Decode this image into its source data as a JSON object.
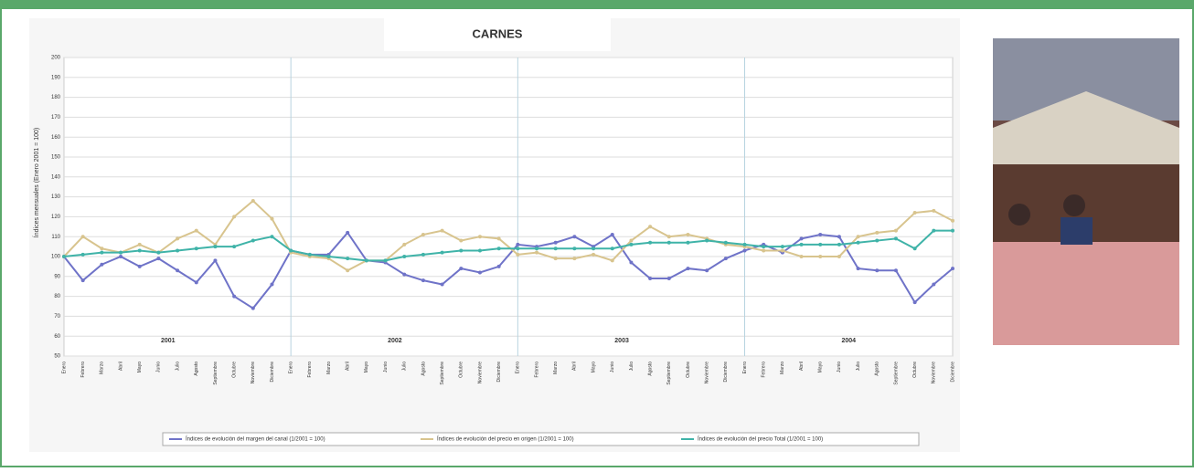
{
  "chart_data": {
    "type": "line",
    "title": "CARNES",
    "y_label": "Índices mensuales (Enero 2001 = 100)",
    "categories": [
      "Enero",
      "Febrero",
      "Marzo",
      "Abril",
      "Mayo",
      "Junio",
      "Julio",
      "Agosto",
      "Septiembre",
      "Octubre",
      "Noviembre",
      "Diciembre",
      "Enero",
      "Febrero",
      "Marzo",
      "Abril",
      "Mayo",
      "Junio",
      "Julio",
      "Agosto",
      "Septiembre",
      "Octubre",
      "Noviembre",
      "Diciembre",
      "Enero",
      "Febrero",
      "Marzo",
      "Abril",
      "Mayo",
      "Junio",
      "Julio",
      "Agosto",
      "Septiembre",
      "Octubre",
      "Noviembre",
      "Diciembre",
      "Enero",
      "Febrero",
      "Marzo",
      "Abril",
      "Mayo",
      "Junio",
      "Julio",
      "Agosto",
      "Septiembre",
      "Octubre",
      "Noviembre",
      "Diciembre"
    ],
    "year_labels": [
      "2001",
      "2002",
      "2003",
      "2004"
    ],
    "series": [
      {
        "name": "Índices de evolución del margen del canal (1/2001 = 100)",
        "color": "#6f73c8",
        "values": [
          100,
          88,
          96,
          100,
          95,
          99,
          93,
          87,
          98,
          80,
          74,
          86,
          103,
          101,
          101,
          112,
          98,
          97,
          91,
          88,
          86,
          94,
          92,
          95,
          106,
          105,
          107,
          110,
          105,
          111,
          97,
          89,
          89,
          94,
          93,
          99,
          103,
          106,
          102,
          109,
          111,
          110,
          94,
          93,
          93,
          77,
          86,
          94
        ]
      },
      {
        "name": "Índices de evolución del precio en origen (1/2001 = 100)",
        "color": "#d8c48e",
        "values": [
          100,
          110,
          104,
          102,
          106,
          102,
          109,
          113,
          106,
          120,
          128,
          119,
          102,
          100,
          99,
          93,
          98,
          98,
          106,
          111,
          113,
          108,
          110,
          109,
          101,
          102,
          99,
          99,
          101,
          98,
          108,
          115,
          110,
          111,
          109,
          106,
          105,
          103,
          103,
          100,
          100,
          100,
          110,
          112,
          113,
          122,
          123,
          118
        ]
      },
      {
        "name": "Índices de evolución del precio Total (1/2001 = 100)",
        "color": "#3fb3a8",
        "values": [
          100,
          101,
          102,
          102,
          103,
          102,
          103,
          104,
          105,
          105,
          108,
          110,
          103,
          101,
          100,
          99,
          98,
          98,
          100,
          101,
          102,
          103,
          103,
          104,
          104,
          104,
          104,
          104,
          104,
          104,
          106,
          107,
          107,
          107,
          108,
          107,
          106,
          105,
          105,
          106,
          106,
          106,
          107,
          108,
          109,
          104,
          113,
          113
        ]
      }
    ],
    "ylim": [
      50,
      200
    ],
    "yticks": [
      50,
      60,
      70,
      80,
      90,
      100,
      110,
      120,
      130,
      140,
      150,
      160,
      170,
      180,
      190,
      200
    ],
    "grid": true
  }
}
